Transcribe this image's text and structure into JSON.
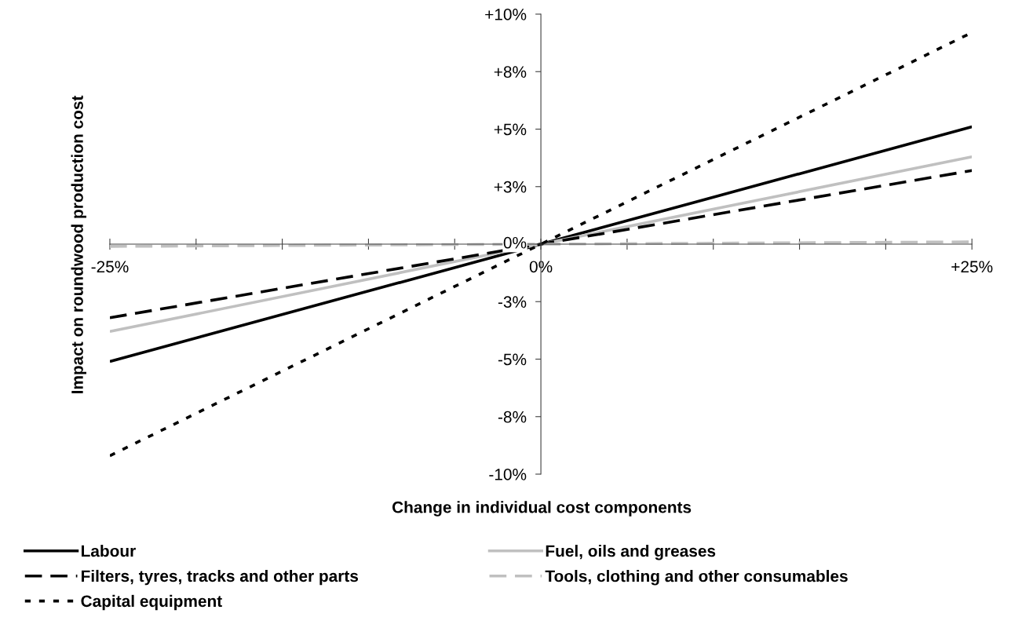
{
  "chart_data": {
    "type": "line",
    "xlabel": "Change in individual cost components",
    "ylabel": "Impact on roundwood production cost",
    "x": [
      -25,
      0,
      25
    ],
    "series": [
      {
        "name": "Labour",
        "color": "#000000",
        "line_style": "solid",
        "values": [
          -5.1,
          0,
          5.1
        ]
      },
      {
        "name": "Fuel, oils and greases",
        "color": "#c0c0c0",
        "line_style": "solid",
        "values": [
          -3.8,
          0,
          3.8
        ]
      },
      {
        "name": "Filters, tyres, tracks and other parts",
        "color": "#000000",
        "line_style": "dashed",
        "values": [
          -3.2,
          0,
          3.2
        ]
      },
      {
        "name": "Tools, clothing and other consumables",
        "color": "#c0c0c0",
        "line_style": "dashed",
        "values": [
          -0.1,
          0,
          0.1
        ]
      },
      {
        "name": "Capital equipment",
        "color": "#000000",
        "line_style": "dotted",
        "values": [
          -9.2,
          0,
          9.2
        ]
      }
    ],
    "xlim": [
      -25,
      25
    ],
    "xticks": [
      {
        "value": -25,
        "label": "-25%"
      },
      {
        "value": -20,
        "label": null
      },
      {
        "value": -15,
        "label": null
      },
      {
        "value": -10,
        "label": null
      },
      {
        "value": -5,
        "label": null
      },
      {
        "value": 0,
        "label": "0%"
      },
      {
        "value": 5,
        "label": null
      },
      {
        "value": 10,
        "label": null
      },
      {
        "value": 15,
        "label": null
      },
      {
        "value": 20,
        "label": null
      },
      {
        "value": 25,
        "label": "+25%"
      }
    ],
    "ylim": [
      -10,
      10
    ],
    "yticks": [
      {
        "value": -10,
        "label": "-10%"
      },
      {
        "value": -7.5,
        "label": "-8%"
      },
      {
        "value": -5,
        "label": "-5%"
      },
      {
        "value": -2.5,
        "label": "-3%"
      },
      {
        "value": 0,
        "label": "0%"
      },
      {
        "value": 2.5,
        "label": "+3%"
      },
      {
        "value": 5,
        "label": "+5%"
      },
      {
        "value": 7.5,
        "label": "+8%"
      },
      {
        "value": 10,
        "label": "+10%"
      }
    ],
    "grid": false,
    "legend": "bottom",
    "marker": "none"
  }
}
